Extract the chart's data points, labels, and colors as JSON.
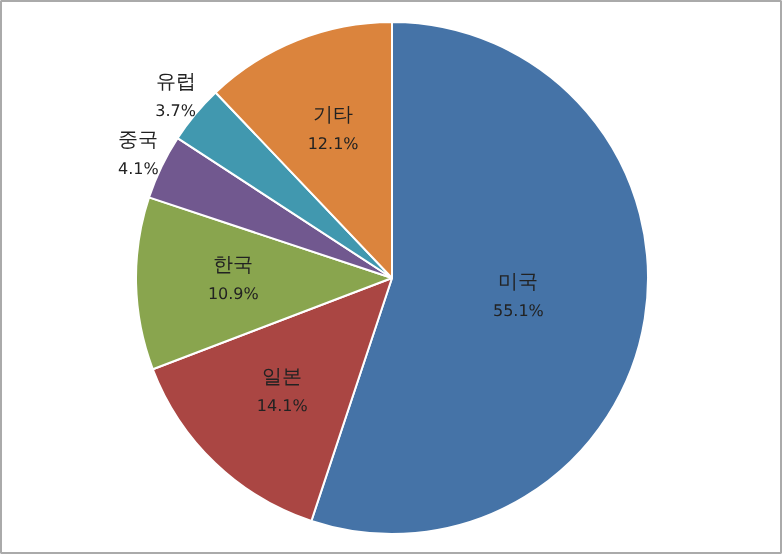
{
  "chart_data": {
    "type": "pie",
    "categories": [
      "미국",
      "일본",
      "한국",
      "중국",
      "유럽",
      "기타"
    ],
    "values": [
      55.1,
      14.1,
      10.9,
      4.1,
      3.7,
      12.1
    ],
    "colors": [
      "#4573a7",
      "#aa4643",
      "#89a54e",
      "#71588f",
      "#4198af",
      "#db843d"
    ],
    "value_labels": [
      "55.1%",
      "14.1%",
      "10.9%",
      "4.1%",
      "3.7%",
      "12.1%"
    ]
  }
}
